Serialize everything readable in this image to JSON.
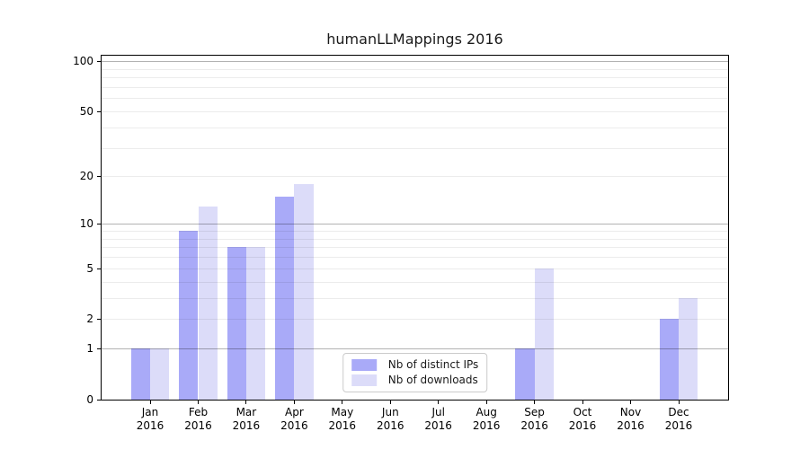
{
  "chart_data": {
    "type": "bar",
    "title": "humanLLMappings 2016",
    "categories": [
      "Jan 2016",
      "Feb 2016",
      "Mar 2016",
      "Apr 2016",
      "May 2016",
      "Jun 2016",
      "Jul 2016",
      "Aug 2016",
      "Sep 2016",
      "Oct 2016",
      "Nov 2016",
      "Dec 2016"
    ],
    "series": [
      {
        "name": "Nb of distinct IPs",
        "color": "#a9aaf8",
        "values": [
          1,
          9,
          7,
          15,
          0,
          0,
          0,
          0,
          1,
          0,
          0,
          2
        ]
      },
      {
        "name": "Nb of downloads",
        "color": "#dcdcf9",
        "values": [
          1,
          13,
          7,
          18,
          0,
          0,
          0,
          0,
          5,
          0,
          0,
          3
        ]
      }
    ],
    "xlabel": "",
    "ylabel": "",
    "yscale": "log1p",
    "ylim": [
      0,
      108
    ],
    "yticks": [
      0,
      1,
      2,
      5,
      10,
      20,
      50,
      100
    ],
    "major_gridlines": [
      1,
      10,
      100
    ],
    "minor_gridlines": [
      2,
      3,
      4,
      5,
      6,
      7,
      8,
      9,
      20,
      30,
      40,
      50,
      60,
      70,
      80,
      90
    ],
    "grid": true,
    "legend_position": "lower center",
    "colors": {
      "background": "#ffffff",
      "bar_distinct_ips": "#a9aaf8",
      "bar_downloads": "#dcdcf9",
      "grid_major": "#b3b3b3",
      "grid_minor": "#ececec",
      "axis": "#000000",
      "text": "#1a1a1a"
    }
  }
}
